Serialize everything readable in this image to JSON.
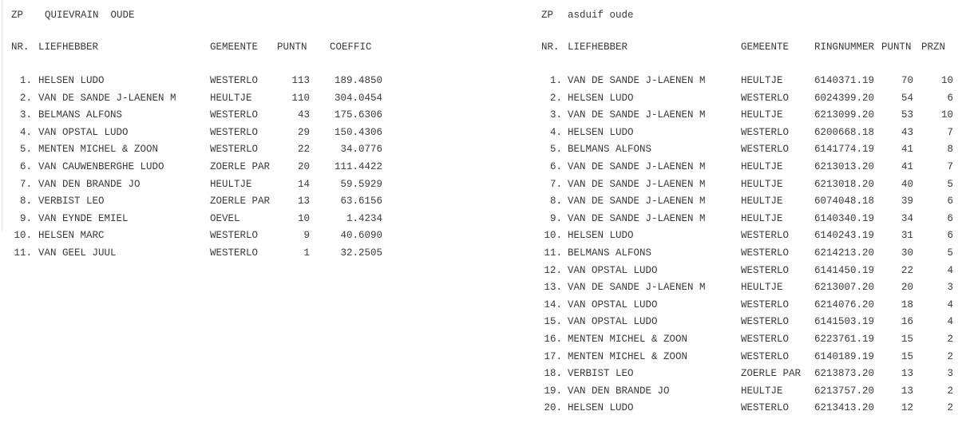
{
  "left": {
    "prefix": "ZP",
    "title": "QUIEVRAIN  OUDE",
    "headers": {
      "nr": "NR.",
      "name": "LIEFHEBBER",
      "gemeente": "GEMEENTE",
      "puntn": "PUNTN",
      "coeffic": "COEFFIC"
    },
    "rows": [
      {
        "nr": "1.",
        "name": "HELSEN LUDO",
        "gemeente": "WESTERLO",
        "puntn": "113",
        "coeffic": "189.4850"
      },
      {
        "nr": "2.",
        "name": "VAN DE SANDE J-LAENEN M",
        "gemeente": "HEULTJE",
        "puntn": "110",
        "coeffic": "304.0454"
      },
      {
        "nr": "3.",
        "name": "BELMANS ALFONS",
        "gemeente": "WESTERLO",
        "puntn": "43",
        "coeffic": "175.6306"
      },
      {
        "nr": "4.",
        "name": "VAN OPSTAL LUDO",
        "gemeente": "WESTERLO",
        "puntn": "29",
        "coeffic": "150.4306"
      },
      {
        "nr": "5.",
        "name": "MENTEN MICHEL & ZOON",
        "gemeente": "WESTERLO",
        "puntn": "22",
        "coeffic": "34.0776"
      },
      {
        "nr": "6.",
        "name": "VAN CAUWENBERGHE LUDO",
        "gemeente": "ZOERLE PAR",
        "puntn": "20",
        "coeffic": "111.4422"
      },
      {
        "nr": "7.",
        "name": "VAN DEN BRANDE JO",
        "gemeente": "HEULTJE",
        "puntn": "14",
        "coeffic": "59.5929"
      },
      {
        "nr": "8.",
        "name": "VERBIST LEO",
        "gemeente": "ZOERLE PAR",
        "puntn": "13",
        "coeffic": "63.6156"
      },
      {
        "nr": "9.",
        "name": "VAN EYNDE EMIEL",
        "gemeente": "OEVEL",
        "puntn": "10",
        "coeffic": "1.4234"
      },
      {
        "nr": "10.",
        "name": "HELSEN MARC",
        "gemeente": "WESTERLO",
        "puntn": "9",
        "coeffic": "40.6090"
      },
      {
        "nr": "11.",
        "name": "VAN GEEL JUUL",
        "gemeente": "WESTERLO",
        "puntn": "1",
        "coeffic": "32.2505"
      }
    ]
  },
  "right": {
    "prefix": "ZP",
    "title": "asduif oude",
    "headers": {
      "nr": "NR.",
      "name": "LIEFHEBBER",
      "gemeente": "GEMEENTE",
      "ring": "RINGNUMMER",
      "puntn": "PUNTN",
      "przn": "PRZN"
    },
    "rows": [
      {
        "nr": "1.",
        "name": "VAN DE SANDE J-LAENEN M",
        "gemeente": "HEULTJE",
        "ring": "6140371.19",
        "puntn": "70",
        "przn": "10"
      },
      {
        "nr": "2.",
        "name": "HELSEN LUDO",
        "gemeente": "WESTERLO",
        "ring": "6024399.20",
        "puntn": "54",
        "przn": "6"
      },
      {
        "nr": "3.",
        "name": "VAN DE SANDE J-LAENEN M",
        "gemeente": "HEULTJE",
        "ring": "6213099.20",
        "puntn": "53",
        "przn": "10"
      },
      {
        "nr": "4.",
        "name": "HELSEN LUDO",
        "gemeente": "WESTERLO",
        "ring": "6200668.18",
        "puntn": "43",
        "przn": "7"
      },
      {
        "nr": "5.",
        "name": "BELMANS ALFONS",
        "gemeente": "WESTERLO",
        "ring": "6141774.19",
        "puntn": "41",
        "przn": "8"
      },
      {
        "nr": "6.",
        "name": "VAN DE SANDE J-LAENEN M",
        "gemeente": "HEULTJE",
        "ring": "6213013.20",
        "puntn": "41",
        "przn": "7"
      },
      {
        "nr": "7.",
        "name": "VAN DE SANDE J-LAENEN M",
        "gemeente": "HEULTJE",
        "ring": "6213018.20",
        "puntn": "40",
        "przn": "5"
      },
      {
        "nr": "8.",
        "name": "VAN DE SANDE J-LAENEN M",
        "gemeente": "HEULTJE",
        "ring": "6074048.18",
        "puntn": "39",
        "przn": "6"
      },
      {
        "nr": "9.",
        "name": "VAN DE SANDE J-LAENEN M",
        "gemeente": "HEULTJE",
        "ring": "6140340.19",
        "puntn": "34",
        "przn": "6"
      },
      {
        "nr": "10.",
        "name": "HELSEN LUDO",
        "gemeente": "WESTERLO",
        "ring": "6140243.19",
        "puntn": "31",
        "przn": "6"
      },
      {
        "nr": "11.",
        "name": "BELMANS ALFONS",
        "gemeente": "WESTERLO",
        "ring": "6214213.20",
        "puntn": "30",
        "przn": "5"
      },
      {
        "nr": "12.",
        "name": "VAN OPSTAL LUDO",
        "gemeente": "WESTERLO",
        "ring": "6141450.19",
        "puntn": "22",
        "przn": "4"
      },
      {
        "nr": "13.",
        "name": "VAN DE SANDE J-LAENEN M",
        "gemeente": "HEULTJE",
        "ring": "6213007.20",
        "puntn": "20",
        "przn": "3"
      },
      {
        "nr": "14.",
        "name": "VAN OPSTAL LUDO",
        "gemeente": "WESTERLO",
        "ring": "6214076.20",
        "puntn": "18",
        "przn": "4"
      },
      {
        "nr": "15.",
        "name": "VAN OPSTAL LUDO",
        "gemeente": "WESTERLO",
        "ring": "6141503.19",
        "puntn": "16",
        "przn": "4"
      },
      {
        "nr": "16.",
        "name": "MENTEN MICHEL & ZOON",
        "gemeente": "WESTERLO",
        "ring": "6223761.19",
        "puntn": "15",
        "przn": "2"
      },
      {
        "nr": "17.",
        "name": "MENTEN MICHEL & ZOON",
        "gemeente": "WESTERLO",
        "ring": "6140189.19",
        "puntn": "15",
        "przn": "2"
      },
      {
        "nr": "18.",
        "name": "VERBIST LEO",
        "gemeente": "ZOERLE PAR",
        "ring": "6213873.20",
        "puntn": "13",
        "przn": "3"
      },
      {
        "nr": "19.",
        "name": "VAN DEN BRANDE JO",
        "gemeente": "HEULTJE",
        "ring": "6213757.20",
        "puntn": "13",
        "przn": "2"
      },
      {
        "nr": "20.",
        "name": "HELSEN LUDO",
        "gemeente": "WESTERLO",
        "ring": "6213413.20",
        "puntn": "12",
        "przn": "2"
      }
    ]
  }
}
